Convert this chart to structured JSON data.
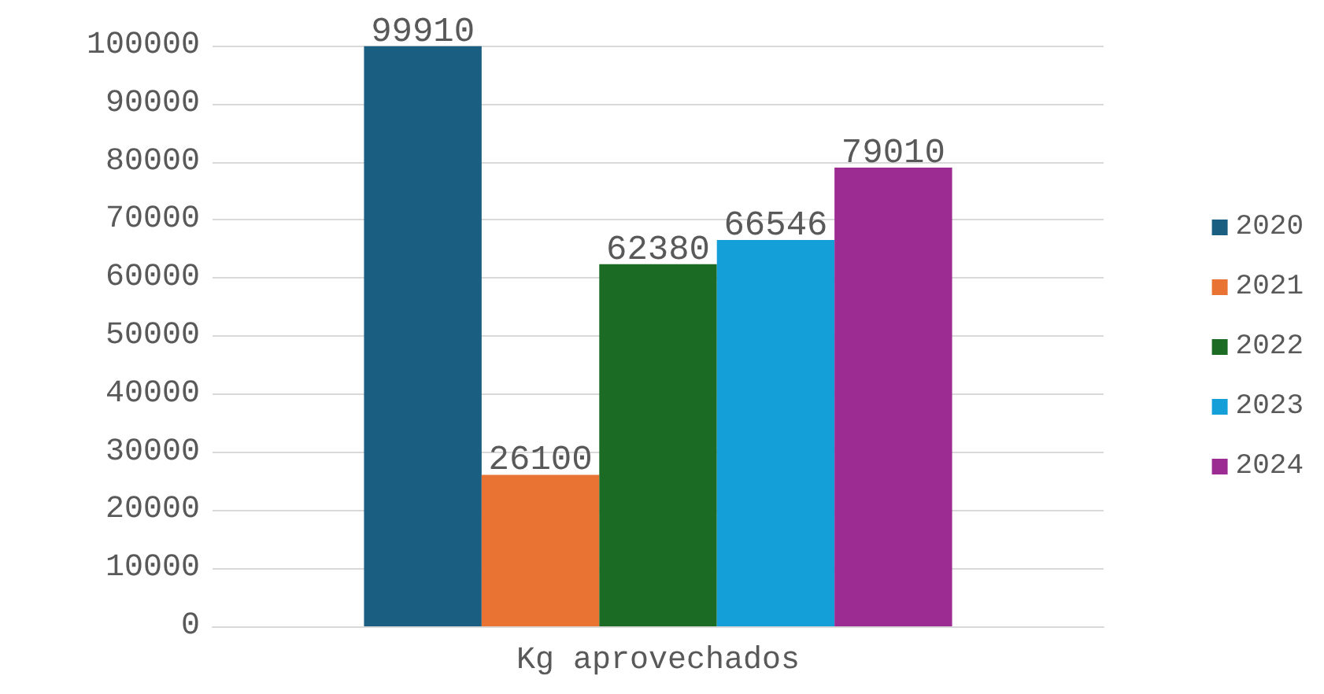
{
  "chart_data": {
    "type": "bar",
    "categories": [
      "Kg aprovechados"
    ],
    "series": [
      {
        "name": "2020",
        "color": "#1a5e82",
        "values": [
          99910
        ]
      },
      {
        "name": "2021",
        "color": "#e97332",
        "values": [
          26100
        ]
      },
      {
        "name": "2022",
        "color": "#1b6b24",
        "values": [
          62380
        ]
      },
      {
        "name": "2023",
        "color": "#149fd8",
        "values": [
          66546
        ]
      },
      {
        "name": "2024",
        "color": "#9c2b92",
        "values": [
          79010
        ]
      }
    ],
    "ylim": [
      0,
      100000
    ],
    "yticks": [
      0,
      10000,
      20000,
      30000,
      40000,
      50000,
      60000,
      70000,
      80000,
      90000,
      100000
    ],
    "grid": "y",
    "legend": "right",
    "data_labels": true
  }
}
